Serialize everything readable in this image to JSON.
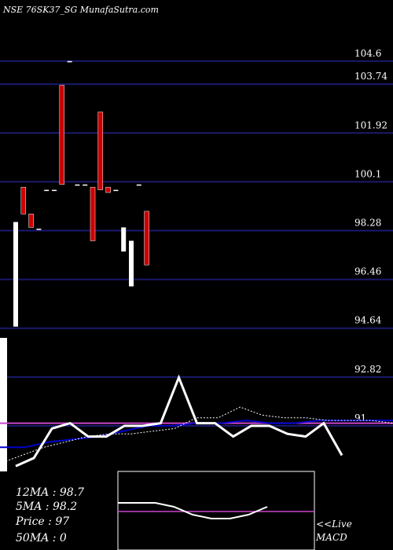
{
  "header": {
    "title": "NSE 76SK37_SG MunafaSutra.com"
  },
  "colors": {
    "background": "#000000",
    "grid": "#1a1a6e",
    "up_candle": "#ffffff",
    "down_candle": "#cc0000",
    "ma_fast": "#ffffff",
    "ma_slow": "#0000cc",
    "ma_dotted": "#ffffff",
    "level_line": "#cc44cc"
  },
  "chart_data": {
    "type": "candlestick",
    "title": "NSE 76SK37_SG MunafaSutra.com",
    "ylim": [
      89.3,
      106.0
    ],
    "y_ticks": [
      "104.6",
      "103.74",
      "101.92",
      "100.1",
      "98.28",
      "96.46",
      "94.64",
      "92.82",
      "91"
    ],
    "y_tick_values": [
      104.6,
      103.74,
      101.92,
      100.1,
      98.28,
      96.46,
      94.64,
      92.82,
      91
    ],
    "candles": [
      {
        "open": 94.7,
        "close": 98.6,
        "high": 98.6,
        "low": 94.7
      },
      {
        "open": 99.9,
        "close": 98.9,
        "high": 99.9,
        "low": 98.9
      },
      {
        "open": 98.9,
        "close": 98.4,
        "high": 98.9,
        "low": 98.4
      },
      {
        "open": 98.35,
        "close": 98.35,
        "high": 98.35,
        "low": 98.35
      },
      {
        "open": 99.8,
        "close": 99.8,
        "high": 99.8,
        "low": 99.8
      },
      {
        "open": 99.8,
        "close": 99.8,
        "high": 99.8,
        "low": 99.8
      },
      {
        "open": 103.7,
        "close": 100.0,
        "high": 103.7,
        "low": 100.0
      },
      {
        "open": 104.6,
        "close": 104.6,
        "high": 104.6,
        "low": 104.6
      },
      {
        "open": 100.0,
        "close": 100.0,
        "high": 100.0,
        "low": 100.0
      },
      {
        "open": 100.0,
        "close": 100.0,
        "high": 100.0,
        "low": 100.0
      },
      {
        "open": 99.9,
        "close": 97.9,
        "high": 99.9,
        "low": 97.9
      },
      {
        "open": 102.7,
        "close": 99.8,
        "high": 102.7,
        "low": 99.8
      },
      {
        "open": 99.9,
        "close": 99.7,
        "high": 99.9,
        "low": 99.7
      },
      {
        "open": 99.8,
        "close": 99.8,
        "high": 99.8,
        "low": 99.8
      },
      {
        "open": 97.5,
        "close": 98.4,
        "high": 98.4,
        "low": 97.5
      },
      {
        "open": 96.2,
        "close": 97.9,
        "high": 97.9,
        "low": 96.2
      },
      {
        "open": 100.0,
        "close": 100.0,
        "high": 100.0,
        "low": 100.0
      },
      {
        "open": 99.0,
        "close": 97.0,
        "high": 99.0,
        "low": 97.0
      }
    ],
    "ma_fast": [
      89.5,
      89.8,
      90.9,
      91.1,
      90.6,
      90.6,
      91.0,
      91.0,
      91.1,
      92.8,
      91.1,
      91.1,
      90.6,
      91.0,
      91.0,
      90.7,
      90.6,
      91.1,
      89.9
    ],
    "ma_slow": [
      90.2,
      90.2,
      90.4,
      90.5,
      90.6,
      90.8,
      91.0,
      91.0,
      91.1,
      91.1,
      91.2,
      91.1,
      91.1,
      91.2,
      91.2,
      91.2,
      91.2
    ],
    "ma_dotted": [
      89.6,
      89.9,
      90.2,
      90.4,
      90.6,
      90.7,
      90.7,
      90.8,
      90.9,
      91.3,
      91.3,
      91.7,
      91.4,
      91.3,
      91.3,
      91.2,
      91.2,
      91.2,
      91.1
    ],
    "level_line": 91.1,
    "legend": {
      "ma12": "12MA : 98.7",
      "ma5": "5MA : 98.2",
      "price": "Price   : 97",
      "ma50": "50MA : 0"
    },
    "macd": {
      "label_live": "<<Live",
      "label_macd": "MACD",
      "line": [
        0.6,
        0.6,
        0.6,
        0.55,
        0.45,
        0.4,
        0.4,
        0.45,
        0.55
      ]
    }
  }
}
